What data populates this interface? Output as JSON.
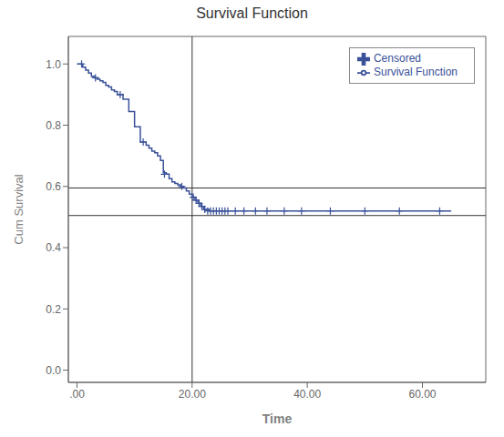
{
  "chart_data": {
    "type": "line",
    "title": "Survival Function",
    "xlabel": "Time",
    "ylabel": "Cum Survival",
    "xlim": [
      -1.5,
      71
    ],
    "ylim": [
      -0.04,
      1.09
    ],
    "xticks": [
      {
        "value": 0,
        "label": ".00"
      },
      {
        "value": 20.0,
        "label": "20.00"
      },
      {
        "value": 40.0,
        "label": "40.00"
      },
      {
        "value": 60.0,
        "label": "60.00"
      }
    ],
    "yticks": [
      {
        "value": 0.0,
        "label": "0.0"
      },
      0.2,
      0.4,
      0.6,
      0.8,
      {
        "value": 1.0,
        "label": "1.0"
      }
    ],
    "legend": "upper right",
    "series": [
      {
        "name": "Survival Function",
        "type": "line",
        "line_style": "step",
        "color": "#3A5199",
        "x": [
          0,
          0.3,
          1.0,
          1.5,
          2.0,
          2.5,
          3.0,
          3.5,
          4.0,
          4.5,
          5.0,
          5.5,
          6.0,
          6.5,
          7.0,
          8.0,
          9.0,
          10.0,
          11.0,
          12.0,
          12.5,
          13.0,
          13.5,
          14.0,
          14.5,
          15.0,
          15.5,
          16.0,
          16.5,
          17.0,
          17.5,
          18.0,
          18.5,
          19.0,
          19.5,
          20.0,
          20.5,
          21.0,
          21.5,
          22.0,
          23.0,
          65.0
        ],
        "values": [
          1.0,
          1.0,
          0.99,
          0.98,
          0.97,
          0.96,
          0.955,
          0.95,
          0.945,
          0.94,
          0.93,
          0.925,
          0.915,
          0.91,
          0.9,
          0.885,
          0.845,
          0.795,
          0.745,
          0.735,
          0.725,
          0.715,
          0.71,
          0.7,
          0.685,
          0.645,
          0.64,
          0.625,
          0.615,
          0.61,
          0.605,
          0.6,
          0.595,
          0.585,
          0.575,
          0.565,
          0.555,
          0.545,
          0.535,
          0.525,
          0.52,
          0.52
        ]
      },
      {
        "name": "Censored",
        "type": "scatter",
        "marker": "+",
        "color": "#3A5199",
        "x": [
          0.8,
          3.2,
          7.5,
          11.5,
          15.2,
          18.2,
          20.2,
          20.7,
          21.2,
          21.7,
          22.2,
          22.7,
          23.2,
          23.7,
          24.2,
          24.7,
          25.2,
          25.7,
          26.2,
          27.5,
          29.0,
          31.0,
          33.0,
          36.0,
          39.0,
          44.0,
          50.0,
          56.0,
          63.0
        ],
        "values": [
          1.0,
          0.955,
          0.9,
          0.745,
          0.64,
          0.6,
          0.565,
          0.555,
          0.545,
          0.535,
          0.525,
          0.52,
          0.52,
          0.52,
          0.52,
          0.52,
          0.52,
          0.52,
          0.52,
          0.52,
          0.52,
          0.52,
          0.52,
          0.52,
          0.52,
          0.52,
          0.52,
          0.52,
          0.52
        ]
      }
    ],
    "reference_lines": [
      {
        "x": 20.0,
        "color": "#333333"
      },
      {
        "y": 0.595,
        "color": "#333333"
      },
      {
        "y": 0.505,
        "color": "#333333"
      }
    ]
  }
}
